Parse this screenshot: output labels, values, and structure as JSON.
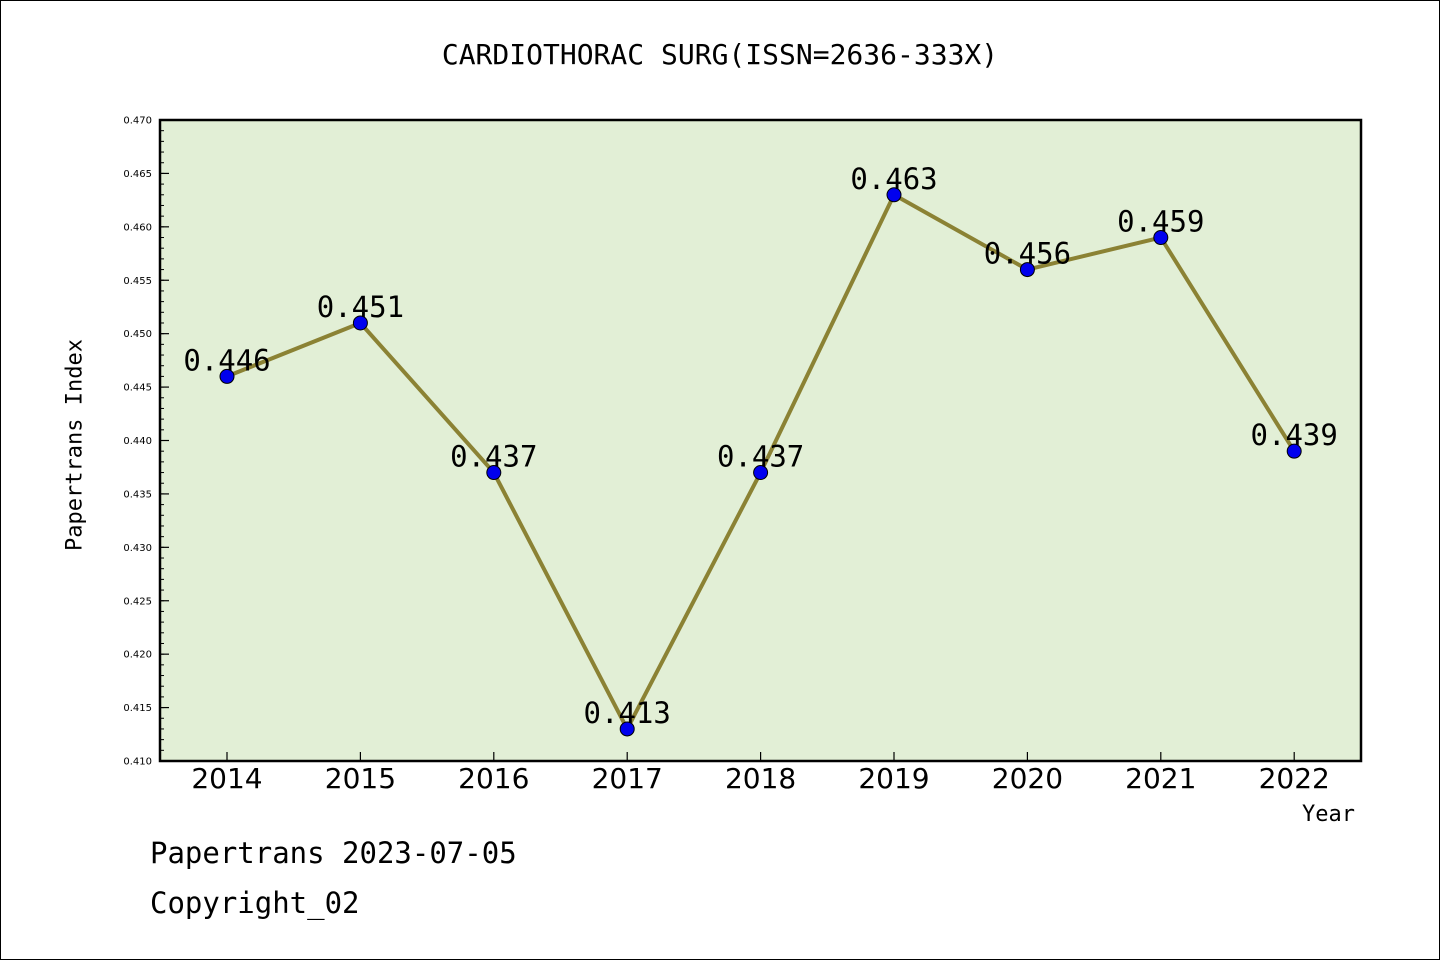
{
  "chart_data": {
    "type": "line",
    "title": "CARDIOTHORAC SURG(ISSN=2636-333X)",
    "xlabel": "Year",
    "ylabel": "Papertrans Index",
    "categories": [
      "2014",
      "2015",
      "2016",
      "2017",
      "2018",
      "2019",
      "2020",
      "2021",
      "2022"
    ],
    "series": [
      {
        "values": [
          0.446,
          0.451,
          0.437,
          0.413,
          0.437,
          0.463,
          0.456,
          0.459,
          0.439
        ],
        "labels": [
          "0.446",
          "0.451",
          "0.437",
          "0.413",
          "0.437",
          "0.463",
          "0.456",
          "0.459",
          "0.439"
        ]
      }
    ],
    "ylim": [
      0.41,
      0.47
    ],
    "yticks": [
      "0.410",
      "0.415",
      "0.420",
      "0.425",
      "0.430",
      "0.435",
      "0.440",
      "0.445",
      "0.450",
      "0.455",
      "0.460",
      "0.465",
      "0.470"
    ],
    "grid": false,
    "colors": {
      "plot_background": "#e2efd6",
      "line": "#8b8234",
      "marker": "#0000ee"
    }
  },
  "footer": {
    "line1": "Papertrans 2023-07-05",
    "line2": "Copyright_02"
  }
}
